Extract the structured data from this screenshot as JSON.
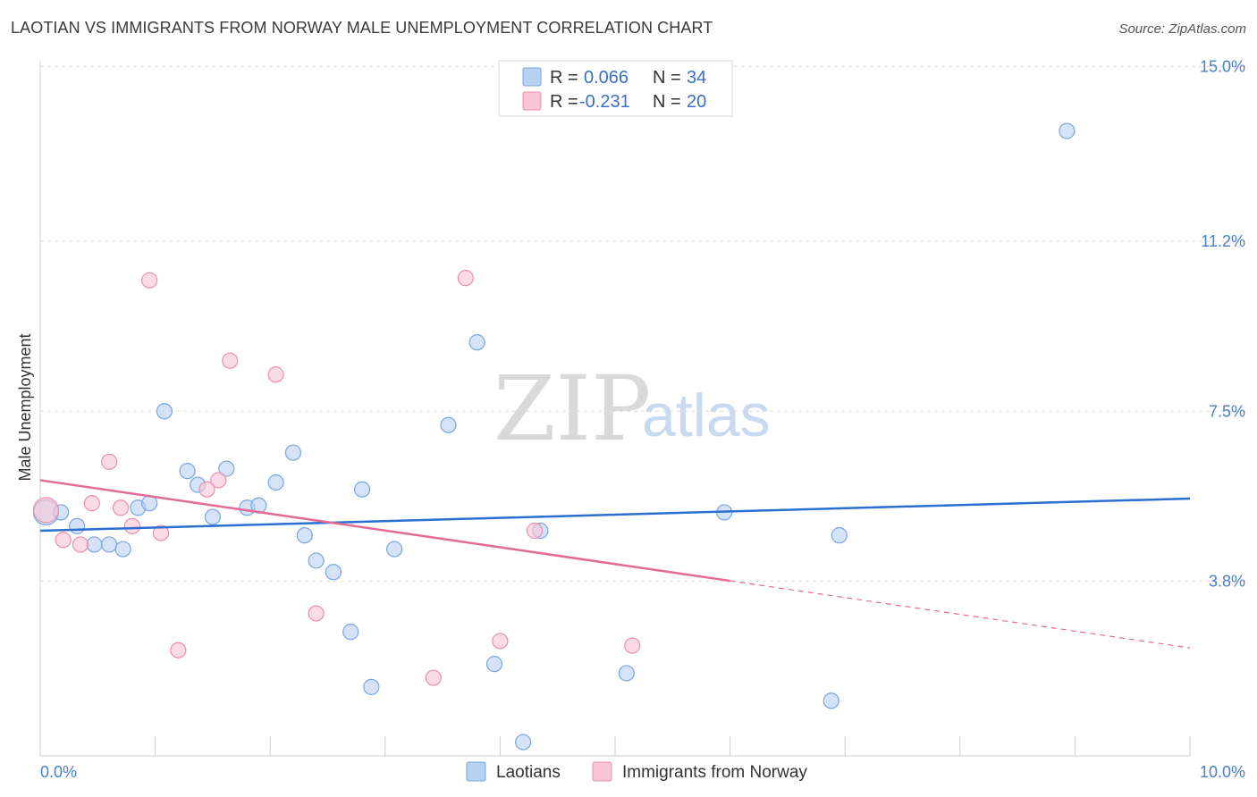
{
  "title": "LAOTIAN VS IMMIGRANTS FROM NORWAY MALE UNEMPLOYMENT CORRELATION CHART",
  "source": "Source: ZipAtlas.com",
  "watermark": {
    "zip": "ZIP",
    "atlas": "atlas"
  },
  "colors": {
    "blue_fill": "#b7d1f3",
    "blue_stroke": "#7aa6df",
    "blue_line": "#2a6fcf",
    "pink_fill": "#f9c5d5",
    "pink_stroke": "#ec8fae",
    "pink_line": "#e46a96"
  },
  "legend": {
    "rows": [
      {
        "r_label": "R =",
        "r_value": "0.066",
        "n_label": "N =",
        "n_value": "34"
      },
      {
        "r_label": "R =",
        "r_value": "-0.231",
        "n_label": "N =",
        "n_value": "20"
      }
    ]
  },
  "bottom_legend": [
    "Laotians",
    "Immigrants from Norway"
  ],
  "chart_data": {
    "type": "scatter",
    "title": "LAOTIAN VS IMMIGRANTS FROM NORWAY MALE UNEMPLOYMENT CORRELATION CHART",
    "xlabel": "",
    "ylabel": "Male Unemployment",
    "xlim": [
      0,
      10
    ],
    "ylim": [
      0,
      15.4
    ],
    "x_tick_labels": [
      "0.0%",
      "10.0%"
    ],
    "y_ticks": [
      3.8,
      7.5,
      11.2,
      15.0
    ],
    "y_tick_labels": [
      "3.8%",
      "7.5%",
      "11.2%",
      "15.0%"
    ],
    "series": [
      {
        "name": "Laotians",
        "r": 0.066,
        "n": 34,
        "points": [
          [
            0.05,
            5.3
          ],
          [
            0.18,
            5.3
          ],
          [
            0.32,
            5.0
          ],
          [
            0.47,
            4.6
          ],
          [
            0.6,
            4.6
          ],
          [
            0.72,
            4.5
          ],
          [
            0.85,
            5.4
          ],
          [
            0.95,
            5.5
          ],
          [
            1.08,
            7.5
          ],
          [
            1.28,
            6.2
          ],
          [
            1.37,
            5.9
          ],
          [
            1.5,
            5.2
          ],
          [
            1.62,
            6.25
          ],
          [
            1.8,
            5.4
          ],
          [
            1.9,
            5.45
          ],
          [
            2.05,
            5.95
          ],
          [
            2.2,
            6.6
          ],
          [
            2.3,
            4.8
          ],
          [
            2.4,
            4.25
          ],
          [
            2.55,
            4.0
          ],
          [
            2.7,
            2.7
          ],
          [
            2.8,
            5.8
          ],
          [
            2.88,
            1.5
          ],
          [
            3.08,
            4.5
          ],
          [
            3.55,
            7.2
          ],
          [
            3.8,
            9.0
          ],
          [
            3.95,
            2.0
          ],
          [
            4.2,
            0.3
          ],
          [
            4.35,
            4.9
          ],
          [
            5.1,
            1.8
          ],
          [
            5.95,
            5.3
          ],
          [
            6.88,
            1.2
          ],
          [
            6.95,
            4.8
          ],
          [
            8.93,
            13.6
          ]
        ],
        "trend": {
          "x": [
            0,
            10
          ],
          "y": [
            4.9,
            5.6
          ],
          "dashed_from": null
        }
      },
      {
        "name": "Immigrants from Norway",
        "r": -0.231,
        "n": 20,
        "points": [
          [
            0.05,
            5.35
          ],
          [
            0.2,
            4.7
          ],
          [
            0.35,
            4.6
          ],
          [
            0.45,
            5.5
          ],
          [
            0.6,
            6.4
          ],
          [
            0.7,
            5.4
          ],
          [
            0.8,
            5.0
          ],
          [
            0.95,
            10.35
          ],
          [
            1.05,
            4.85
          ],
          [
            1.2,
            2.3
          ],
          [
            1.45,
            5.8
          ],
          [
            1.55,
            6.0
          ],
          [
            1.65,
            8.6
          ],
          [
            2.05,
            8.3
          ],
          [
            2.4,
            3.1
          ],
          [
            3.42,
            1.7
          ],
          [
            3.7,
            10.4
          ],
          [
            4.0,
            2.5
          ],
          [
            4.3,
            4.9
          ],
          [
            5.15,
            2.4
          ]
        ],
        "trend": {
          "x": [
            0,
            10
          ],
          "y": [
            6.0,
            2.35
          ],
          "dashed_from": 6.0
        }
      }
    ]
  }
}
